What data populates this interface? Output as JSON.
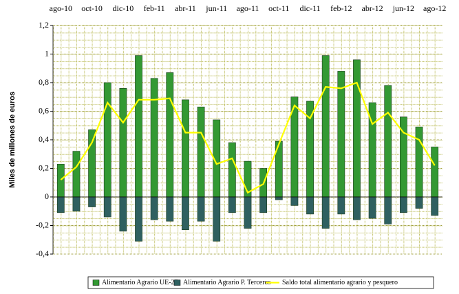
{
  "chart_data": {
    "type": "bar_line",
    "y_label": "Miles de millones de euros",
    "categories": [
      "ago-10",
      null,
      "oct-10",
      null,
      "dic-10",
      null,
      "feb-11",
      null,
      "abr-11",
      null,
      "jun-11",
      null,
      "ago-11",
      null,
      "oct-11",
      null,
      "dic-11",
      null,
      "feb-12",
      null,
      "abr-12",
      null,
      "jun-12",
      null,
      "ago-12"
    ],
    "series": [
      {
        "name": "Alimentario Agrario UE-27",
        "kind": "bar",
        "color": "#339933",
        "values": [
          0.23,
          0.32,
          0.47,
          0.8,
          0.76,
          0.99,
          0.83,
          0.87,
          0.68,
          0.63,
          0.54,
          0.38,
          0.25,
          0.2,
          0.39,
          0.7,
          0.67,
          0.99,
          0.88,
          0.96,
          0.66,
          0.78,
          0.56,
          0.49,
          0.35
        ]
      },
      {
        "name": "Alimentario Agrario P. Terceros",
        "kind": "bar",
        "color": "#2f6060",
        "values": [
          -0.11,
          -0.1,
          -0.07,
          -0.14,
          -0.24,
          -0.31,
          -0.16,
          -0.17,
          -0.23,
          -0.17,
          -0.31,
          -0.11,
          -0.22,
          -0.11,
          -0.02,
          -0.06,
          -0.12,
          -0.22,
          -0.12,
          -0.16,
          -0.15,
          -0.19,
          -0.11,
          -0.08,
          -0.13
        ]
      },
      {
        "name": "Saldo total alimentario agrario y pesquero",
        "kind": "line",
        "color": "#ffff00",
        "values": [
          0.12,
          0.21,
          0.38,
          0.66,
          0.52,
          0.68,
          0.68,
          0.69,
          0.45,
          0.45,
          0.23,
          0.27,
          0.03,
          0.09,
          0.37,
          0.64,
          0.55,
          0.77,
          0.76,
          0.8,
          0.51,
          0.59,
          0.45,
          0.4,
          0.22
        ]
      }
    ],
    "ylim": [
      -0.4,
      1.2
    ],
    "yticks": [
      {
        "value": -0.4,
        "label": "-0,4"
      },
      {
        "value": -0.2,
        "label": "-0,2"
      },
      0,
      {
        "value": 0.2,
        "label": "0,2"
      },
      {
        "value": 0.4,
        "label": "0,4"
      },
      {
        "value": 0.6,
        "label": "0,6"
      },
      {
        "value": 0.8,
        "label": "0,8"
      },
      1,
      {
        "value": 1.2,
        "label": "1,2"
      }
    ],
    "grid": true,
    "legend": "bottom"
  }
}
